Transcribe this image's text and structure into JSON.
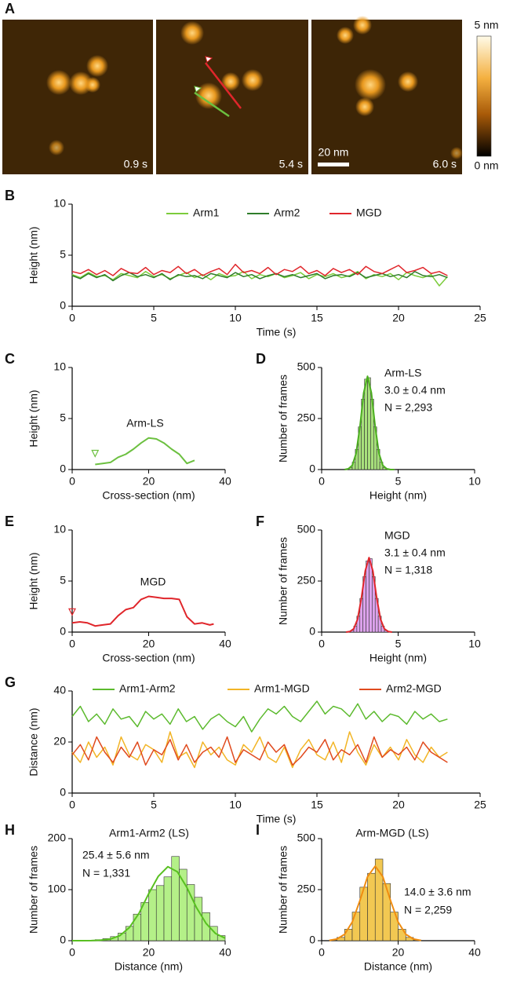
{
  "panel_a": {
    "panel": "A",
    "frames": [
      "0.9 s",
      "5.4 s",
      "6.0 s"
    ],
    "scale_bar": "20 nm",
    "colorbar": [
      "5 nm",
      "0 nm"
    ]
  },
  "chart_data": [
    {
      "panel": "B",
      "type": "line",
      "xlabel": "Time (s)",
      "ylabel": "Height (nm)",
      "legend": "top",
      "xlim": [
        0,
        25
      ],
      "xticks": [
        0,
        5,
        10,
        15,
        20,
        25
      ],
      "ylim": [
        0,
        10
      ],
      "yticks": [
        0,
        5,
        10
      ],
      "x": [
        0,
        0.5,
        1,
        1.5,
        2,
        2.5,
        3,
        3.5,
        4,
        4.5,
        5,
        5.5,
        6,
        6.5,
        7,
        7.5,
        8,
        8.5,
        9,
        9.5,
        10,
        10.5,
        11,
        11.5,
        12,
        12.5,
        13,
        13.5,
        14,
        14.5,
        15,
        15.5,
        16,
        16.5,
        17,
        17.5,
        18,
        18.5,
        19,
        19.5,
        20,
        20.5,
        21,
        21.5,
        22,
        22.5,
        23
      ],
      "series": [
        {
          "name": "Arm1",
          "color": "#7ccc3c",
          "values": [
            3.1,
            2.8,
            3.3,
            2.9,
            3.0,
            2.6,
            3.2,
            3.0,
            2.8,
            3.4,
            2.9,
            3.1,
            2.7,
            3.0,
            3.3,
            2.8,
            3.1,
            2.6,
            3.2,
            2.9,
            3.0,
            3.4,
            2.7,
            3.1,
            2.9,
            3.2,
            2.8,
            3.0,
            3.3,
            2.7,
            3.1,
            2.9,
            3.2,
            2.8,
            3.0,
            3.4,
            2.7,
            3.1,
            2.9,
            3.2,
            2.6,
            3.3,
            3.0,
            2.8,
            3.1,
            2.0,
            2.9
          ]
        },
        {
          "name": "Arm2",
          "color": "#2f7d2a",
          "values": [
            3.0,
            2.7,
            3.2,
            2.8,
            3.1,
            2.5,
            3.0,
            3.3,
            2.9,
            3.1,
            2.8,
            3.2,
            2.6,
            3.1,
            2.9,
            3.0,
            2.7,
            3.2,
            3.0,
            2.8,
            3.3,
            2.9,
            3.1,
            2.7,
            3.0,
            3.2,
            2.9,
            3.1,
            2.8,
            3.0,
            3.2,
            2.7,
            3.0,
            3.1,
            2.9,
            3.3,
            2.8,
            3.0,
            3.2,
            2.9,
            3.1,
            2.8,
            3.4,
            3.0,
            2.9,
            3.1,
            2.8
          ]
        },
        {
          "name": "MGD",
          "color": "#e0262b",
          "values": [
            3.4,
            3.2,
            3.6,
            3.1,
            3.5,
            3.0,
            3.7,
            3.3,
            3.2,
            3.8,
            3.1,
            3.5,
            3.3,
            3.9,
            3.2,
            3.6,
            3.0,
            3.4,
            3.7,
            3.1,
            4.1,
            3.3,
            3.5,
            3.2,
            3.8,
            3.1,
            3.6,
            3.4,
            3.9,
            3.2,
            3.5,
            3.0,
            3.7,
            3.3,
            3.6,
            3.1,
            3.9,
            3.4,
            3.2,
            3.6,
            4.0,
            3.3,
            3.5,
            3.8,
            3.2,
            3.4,
            3.0
          ]
        }
      ]
    },
    {
      "panel": "C",
      "type": "line",
      "xlabel": "Cross-section (nm)",
      "ylabel": "Height (nm)",
      "annotations": [
        "Arm-LS"
      ],
      "xlim": [
        0,
        40
      ],
      "xticks": [
        0,
        20,
        40
      ],
      "ylim": [
        0,
        10
      ],
      "yticks": [
        0,
        5,
        10
      ],
      "color": "#6cc040",
      "x": [
        6,
        8,
        10,
        12,
        14,
        16,
        18,
        20,
        22,
        24,
        26,
        28,
        30,
        32
      ],
      "values": [
        0.5,
        0.6,
        0.7,
        1.2,
        1.5,
        2.0,
        2.6,
        3.1,
        3.0,
        2.6,
        2.0,
        1.5,
        0.6,
        0.9
      ]
    },
    {
      "panel": "D",
      "type": "histogram",
      "xlabel": "Height (nm)",
      "ylabel": "Number of frames",
      "annotations": [
        "Arm-LS",
        "3.0 ± 0.4 nm",
        "N = 2,293"
      ],
      "xlim": [
        0,
        10
      ],
      "xticks": [
        0,
        5,
        10
      ],
      "ylim": [
        0,
        500
      ],
      "yticks": [
        0,
        250,
        500
      ],
      "color": "#a8e07c",
      "edge_color": "#333333",
      "bins": [
        1.8,
        2.0,
        2.2,
        2.4,
        2.6,
        2.8,
        3.0,
        3.2,
        3.4,
        3.6,
        3.8,
        4.0,
        4.2,
        4.4,
        4.6,
        4.8
      ],
      "counts": [
        10,
        36,
        99,
        209,
        345,
        443,
        450,
        345,
        209,
        99,
        36,
        10,
        3,
        1,
        1
      ],
      "fit": {
        "color": "#4caf20",
        "x": [
          1.5,
          1.75,
          2,
          2.25,
          2.5,
          2.75,
          3,
          3.25,
          3.5,
          3.75,
          4,
          4.25,
          4.5,
          4.75
        ],
        "values": [
          0,
          4,
          20,
          79,
          209,
          376,
          457,
          376,
          209,
          79,
          20,
          4,
          0,
          0
        ]
      }
    },
    {
      "panel": "E",
      "type": "line",
      "xlabel": "Cross-section (nm)",
      "ylabel": "Height (nm)",
      "annotations": [
        "MGD"
      ],
      "xlim": [
        0,
        40
      ],
      "xticks": [
        0,
        20,
        40
      ],
      "ylim": [
        0,
        10
      ],
      "yticks": [
        0,
        5,
        10
      ],
      "color": "#e0262b",
      "x": [
        0,
        2,
        4,
        6,
        8,
        10,
        12,
        14,
        16,
        18,
        20,
        22,
        24,
        26,
        28,
        30,
        32,
        34,
        36,
        37
      ],
      "values": [
        0.9,
        1.0,
        0.9,
        0.6,
        0.7,
        0.8,
        1.6,
        2.2,
        2.4,
        3.2,
        3.5,
        3.4,
        3.3,
        3.3,
        3.2,
        1.5,
        0.8,
        0.9,
        0.7,
        0.8
      ]
    },
    {
      "panel": "F",
      "type": "histogram",
      "xlabel": "Height (nm)",
      "ylabel": "Number of frames",
      "annotations": [
        "MGD",
        "3.1 ± 0.4 nm",
        "N = 1,318"
      ],
      "xlim": [
        0,
        10
      ],
      "xticks": [
        0,
        5,
        10
      ],
      "ylim": [
        0,
        500
      ],
      "yticks": [
        0,
        250,
        500
      ],
      "color": "#dca2ec",
      "edge_color": "#333333",
      "bins": [
        1.9,
        2.1,
        2.3,
        2.5,
        2.7,
        2.9,
        3.1,
        3.3,
        3.5,
        3.7,
        3.9,
        4.1,
        4.3,
        4.5
      ],
      "counts": [
        8,
        29,
        78,
        165,
        272,
        349,
        360,
        272,
        165,
        78,
        29,
        8,
        2
      ],
      "fit": {
        "color": "#e0262b",
        "x": [
          1.6,
          1.85,
          2.1,
          2.35,
          2.6,
          2.85,
          3.1,
          3.35,
          3.6,
          3.85,
          4.1,
          4.35,
          4.6
        ],
        "values": [
          0,
          3,
          16,
          63,
          167,
          300,
          365,
          300,
          167,
          63,
          16,
          3,
          0
        ]
      }
    },
    {
      "panel": "G",
      "type": "line",
      "xlabel": "Time (s)",
      "ylabel": "Distance (nm)",
      "legend": "top",
      "xlim": [
        0,
        25
      ],
      "xticks": [
        0,
        5,
        10,
        15,
        20,
        25
      ],
      "ylim": [
        0,
        40
      ],
      "yticks": [
        0,
        20,
        40
      ],
      "x": [
        0,
        0.5,
        1,
        1.5,
        2,
        2.5,
        3,
        3.5,
        4,
        4.5,
        5,
        5.5,
        6,
        6.5,
        7,
        7.5,
        8,
        8.5,
        9,
        9.5,
        10,
        10.5,
        11,
        11.5,
        12,
        12.5,
        13,
        13.5,
        14,
        14.5,
        15,
        15.5,
        16,
        16.5,
        17,
        17.5,
        18,
        18.5,
        19,
        19.5,
        20,
        20.5,
        21,
        21.5,
        22,
        22.5,
        23
      ],
      "series": [
        {
          "name": "Arm1-Arm2",
          "color": "#5cba2e",
          "values": [
            30,
            34,
            28,
            31,
            27,
            33,
            29,
            30,
            26,
            32,
            29,
            31,
            27,
            33,
            28,
            30,
            25,
            29,
            31,
            28,
            26,
            30,
            24,
            29,
            33,
            31,
            34,
            30,
            28,
            32,
            36,
            31,
            34,
            33,
            30,
            35,
            29,
            32,
            28,
            31,
            30,
            27,
            32,
            29,
            31,
            28,
            29
          ]
        },
        {
          "name": "Arm1-MGD",
          "color": "#f2b526",
          "values": [
            16,
            12,
            20,
            14,
            18,
            11,
            22,
            15,
            13,
            19,
            17,
            12,
            24,
            14,
            16,
            10,
            20,
            15,
            18,
            13,
            11,
            19,
            16,
            22,
            14,
            12,
            18,
            10,
            17,
            21,
            15,
            13,
            20,
            12,
            24,
            16,
            11,
            19,
            14,
            18,
            13,
            21,
            15,
            12,
            18,
            14,
            16
          ]
        },
        {
          "name": "Arm2-MGD",
          "color": "#e04a1e",
          "values": [
            15,
            19,
            13,
            22,
            16,
            12,
            18,
            14,
            20,
            11,
            17,
            15,
            21,
            13,
            19,
            12,
            16,
            18,
            14,
            22,
            12,
            17,
            15,
            13,
            20,
            16,
            19,
            11,
            14,
            18,
            16,
            21,
            13,
            17,
            15,
            19,
            12,
            22,
            14,
            17,
            15,
            18,
            13,
            20,
            16,
            14,
            12
          ]
        }
      ]
    },
    {
      "panel": "H",
      "type": "histogram",
      "xlabel": "Distance (nm)",
      "ylabel": "Number of frames",
      "annotations": [
        "Arm1-Arm2 (LS)",
        "25.4 ± 5.6 nm",
        "N = 1,331"
      ],
      "xlim": [
        0,
        40
      ],
      "xticks": [
        0,
        20,
        40
      ],
      "ylim": [
        0,
        200
      ],
      "yticks": [
        0,
        100,
        200
      ],
      "color": "#b4f088",
      "edge_color": "#333333",
      "bins": [
        6,
        8,
        10,
        12,
        14,
        16,
        18,
        20,
        22,
        24,
        26,
        28,
        30,
        32,
        34,
        36,
        38,
        40
      ],
      "counts": [
        2,
        4,
        8,
        15,
        28,
        52,
        75,
        100,
        108,
        125,
        165,
        140,
        110,
        85,
        55,
        28,
        10
      ],
      "fit": {
        "color": "#58c020",
        "x": [
          0,
          2.5,
          5,
          7.5,
          10,
          12.5,
          15,
          17.5,
          20,
          22.5,
          25,
          27.5,
          30,
          32.5,
          35,
          37.5,
          40
        ],
        "values": [
          0,
          0,
          0.2,
          0.9,
          3.3,
          10,
          26,
          54,
          92,
          126,
          145,
          135,
          104,
          65,
          34,
          14,
          5
        ]
      }
    },
    {
      "panel": "I",
      "type": "histogram",
      "xlabel": "Distance (nm)",
      "ylabel": "Number of frames",
      "annotations": [
        "Arm-MGD (LS)",
        "14.0 ± 3.6 nm",
        "N = 2,259"
      ],
      "xlim": [
        0,
        40
      ],
      "xticks": [
        0,
        20,
        40
      ],
      "ylim": [
        0,
        500
      ],
      "yticks": [
        0,
        250,
        500
      ],
      "color": "#f2c852",
      "edge_color": "#333333",
      "bins": [
        2,
        4,
        6,
        8,
        10,
        12,
        14,
        16,
        18,
        20,
        22,
        24,
        26
      ],
      "counts": [
        3,
        16,
        56,
        140,
        262,
        330,
        400,
        280,
        140,
        56,
        16,
        3
      ],
      "fit": {
        "color": "#f08c10",
        "x": [
          2,
          4,
          6,
          8,
          10,
          12,
          14,
          16,
          18,
          20,
          22,
          24,
          26
        ],
        "values": [
          1.4,
          8,
          31,
          91,
          197,
          313,
          365,
          313,
          197,
          91,
          31,
          8,
          1
        ]
      }
    }
  ]
}
